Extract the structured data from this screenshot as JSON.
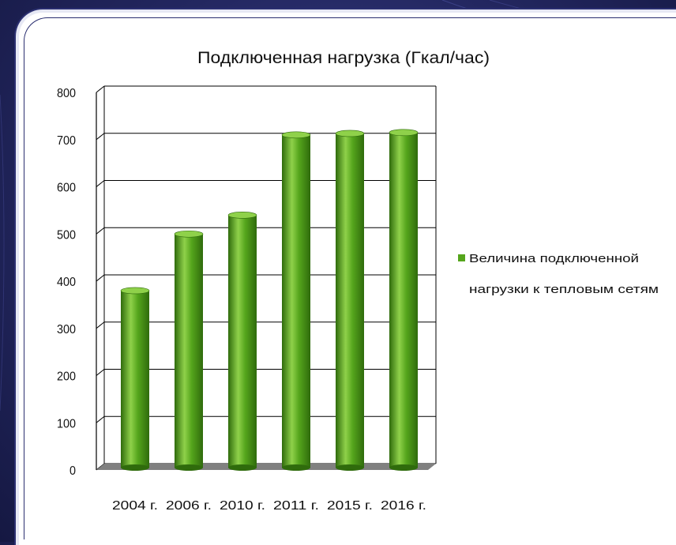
{
  "chart_data": {
    "type": "bar",
    "title": "Подключенная нагрузка (Гкал/час)",
    "categories": [
      "2004 г.",
      "2006 г.",
      "2010 г.",
      "2011 г.",
      "2015 г.",
      "2016 г."
    ],
    "series": [
      {
        "name": "Величина подключенной нагрузки к тепловым сетям",
        "name_lines": [
          "Величина подключенной",
          "нагрузки к тепловым сетям"
        ],
        "values": [
          380,
          500,
          540,
          710,
          713,
          715
        ],
        "color": "#55a51c"
      }
    ],
    "y_ticks": [
      "0",
      "100",
      "200",
      "300",
      "400",
      "500",
      "600",
      "700",
      "800"
    ],
    "ylim": [
      0,
      800
    ],
    "grid": true,
    "legend_position": "right",
    "colors": {
      "bar": "#55a51c",
      "bar_dark": "#2f6b0c",
      "bar_light": "#8fd14a",
      "floor": "#808080",
      "grid": "#000000"
    }
  }
}
